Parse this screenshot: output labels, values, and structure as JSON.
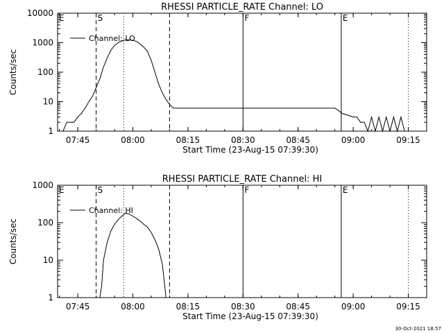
{
  "footer_timestamp": "30-Oct-2021 18:57",
  "chart_data": [
    {
      "type": "line",
      "title": "RHESSI PARTICLE_RATE Channel: LO",
      "xlabel": "Start Time (23-Aug-15 07:39:30)",
      "ylabel": "Counts/sec",
      "yscale": "log",
      "ylim": [
        1,
        10000
      ],
      "xlim": [
        "07:39:30",
        "09:20:00"
      ],
      "x_tick_labels": [
        "07:45",
        "08:00",
        "08:15",
        "08:30",
        "08:45",
        "09:00",
        "09:15"
      ],
      "y_tick_labels": [
        "1",
        "10",
        "100",
        "1000",
        "10000"
      ],
      "legend": {
        "position": "top-left",
        "entries": [
          "Channel: LO"
        ]
      },
      "series": [
        {
          "name": "Channel: LO",
          "x": [
            "07:41:00",
            "07:42:00",
            "07:43:00",
            "07:44:00",
            "07:45:00",
            "07:46:00",
            "07:47:00",
            "07:48:00",
            "07:49:00",
            "07:50:00",
            "07:51:00",
            "07:52:00",
            "07:53:00",
            "07:54:00",
            "07:55:00",
            "07:56:00",
            "07:57:00",
            "07:58:00",
            "07:59:00",
            "08:00:00",
            "08:01:00",
            "08:02:00",
            "08:03:00",
            "08:04:00",
            "08:05:00",
            "08:06:00",
            "08:07:00",
            "08:08:00",
            "08:09:00",
            "08:10:00",
            "08:11:00",
            "08:12:00",
            "08:15:00",
            "08:20:00",
            "08:25:00",
            "08:30:00",
            "08:35:00",
            "08:40:00",
            "08:45:00",
            "08:50:00",
            "08:55:00",
            "08:56:00",
            "08:57:00",
            "09:00:00",
            "09:01:00",
            "09:02:00",
            "09:03:00",
            "09:04:00",
            "09:05:00",
            "09:06:00",
            "09:07:00",
            "09:08:00",
            "09:09:00",
            "09:10:00",
            "09:11:00",
            "09:12:00",
            "09:13:00",
            "09:14:00"
          ],
          "values": [
            1,
            2,
            2,
            2,
            3,
            4,
            6,
            10,
            15,
            30,
            60,
            150,
            300,
            550,
            800,
            1000,
            1150,
            1250,
            1250,
            1200,
            1100,
            900,
            700,
            500,
            250,
            100,
            40,
            20,
            12,
            8,
            6,
            6,
            6,
            6,
            6,
            6,
            6,
            6,
            6,
            6,
            6,
            5,
            4,
            3,
            3,
            2,
            2,
            1,
            3,
            1,
            3,
            1,
            3,
            1,
            3,
            1,
            3,
            1
          ]
        }
      ],
      "vertical_markers": [
        {
          "label": "E",
          "time": "07:39:30",
          "style": "solid"
        },
        {
          "label": "S",
          "time": "07:50:00",
          "style": "dashed"
        },
        {
          "label": "",
          "time": "07:57:30",
          "style": "dotted"
        },
        {
          "label": "",
          "time": "08:10:00",
          "style": "dashed"
        },
        {
          "label": "F",
          "time": "08:30:00",
          "style": "solid"
        },
        {
          "label": "E",
          "time": "08:56:45",
          "style": "solid"
        },
        {
          "label": "",
          "time": "09:15:00",
          "style": "dotted"
        }
      ]
    },
    {
      "type": "line",
      "title": "RHESSI PARTICLE_RATE Channel: HI",
      "xlabel": "Start Time (23-Aug-15 07:39:30)",
      "ylabel": "Counts/sec",
      "yscale": "log",
      "ylim": [
        1,
        1000
      ],
      "xlim": [
        "07:39:30",
        "09:20:00"
      ],
      "x_tick_labels": [
        "07:45",
        "08:00",
        "08:15",
        "08:30",
        "08:45",
        "09:00",
        "09:15"
      ],
      "y_tick_labels": [
        "1",
        "10",
        "100",
        "1000"
      ],
      "legend": {
        "position": "top-left",
        "entries": [
          "Channel: HI"
        ]
      },
      "series": [
        {
          "name": "Channel: HI",
          "x": [
            "07:51:00",
            "07:51:30",
            "07:52:00",
            "07:53:00",
            "07:54:00",
            "07:55:00",
            "07:56:00",
            "07:57:00",
            "07:58:00",
            "07:59:00",
            "08:00:00",
            "08:01:00",
            "08:02:00",
            "08:03:00",
            "08:04:00",
            "08:05:00",
            "08:06:00",
            "08:07:00",
            "08:08:00",
            "08:08:30",
            "08:09:00"
          ],
          "values": [
            1,
            2,
            10,
            30,
            60,
            90,
            120,
            150,
            180,
            170,
            150,
            130,
            110,
            90,
            75,
            55,
            35,
            20,
            8,
            3,
            1
          ]
        }
      ],
      "vertical_markers": [
        {
          "label": "E",
          "time": "07:39:30",
          "style": "solid"
        },
        {
          "label": "S",
          "time": "07:50:00",
          "style": "dashed"
        },
        {
          "label": "",
          "time": "07:57:30",
          "style": "dotted"
        },
        {
          "label": "",
          "time": "08:10:00",
          "style": "dashed"
        },
        {
          "label": "F",
          "time": "08:30:00",
          "style": "solid"
        },
        {
          "label": "E",
          "time": "08:56:45",
          "style": "solid"
        },
        {
          "label": "",
          "time": "09:15:00",
          "style": "dotted"
        }
      ]
    }
  ]
}
